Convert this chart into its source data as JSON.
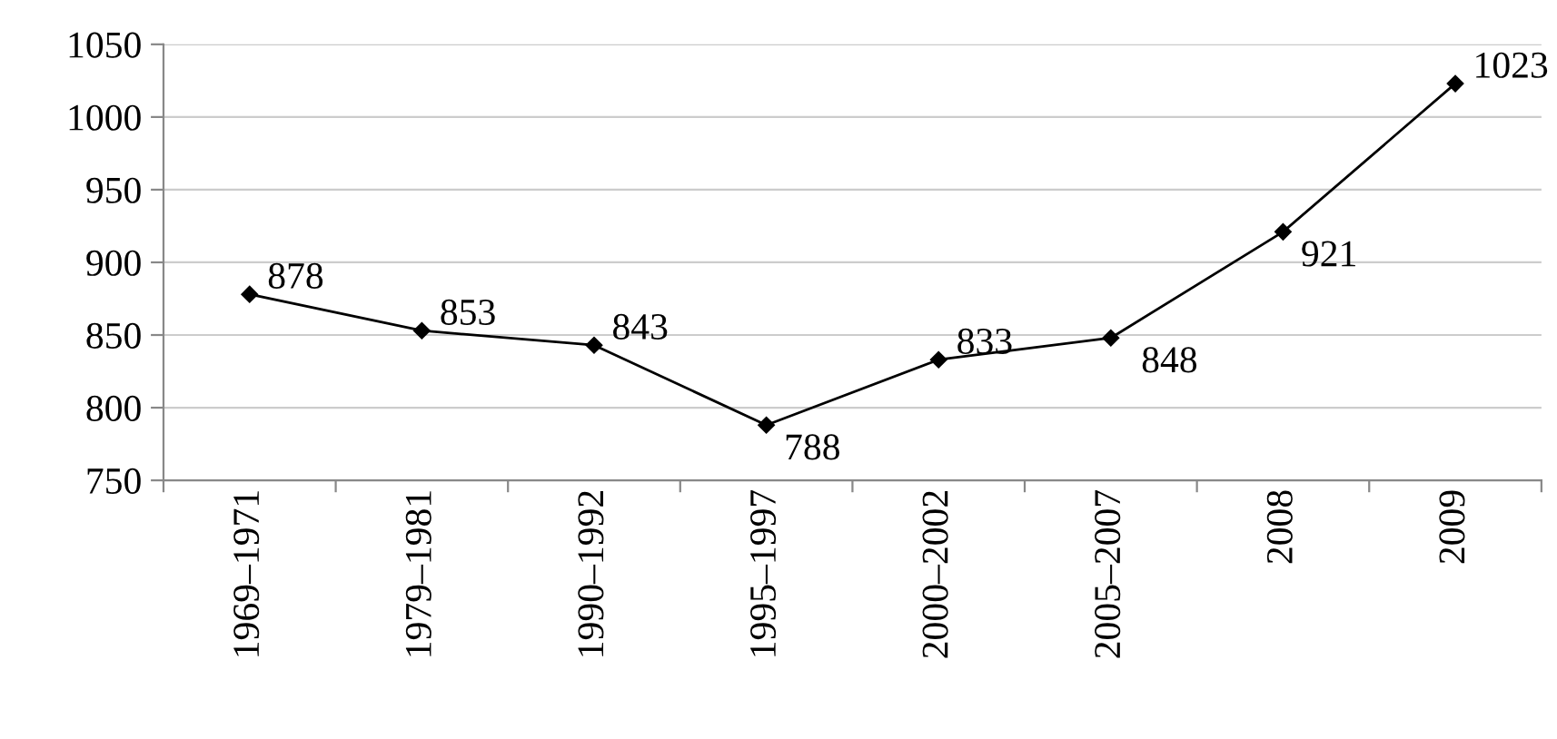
{
  "chart_data": {
    "type": "line",
    "categories": [
      "1969–1971",
      "1979–1981",
      "1990–1992",
      "1995–1997",
      "2000–2002",
      "2005–2007",
      "2008",
      "2009"
    ],
    "series": [
      {
        "color": "#000000",
        "values": [
          878,
          853,
          843,
          788,
          833,
          848,
          921,
          1023
        ]
      }
    ],
    "ylim": [
      750,
      1050
    ],
    "yticks": [
      750,
      800,
      850,
      900,
      950,
      1000,
      1050
    ],
    "grid": "y",
    "marker": "diamond",
    "line_style": "solid",
    "data_labels": true
  }
}
